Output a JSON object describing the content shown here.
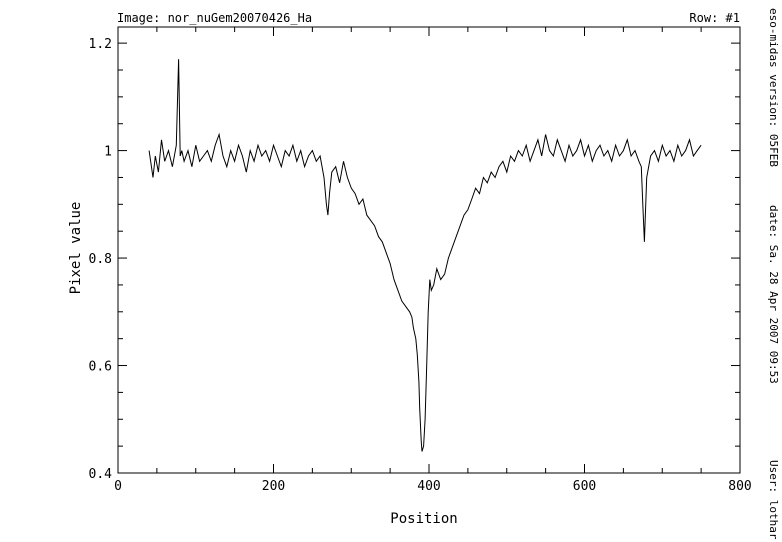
{
  "header": {
    "image_label": "Image:  nor_nuGem20070426_Ha",
    "row_label": "Row:  #1"
  },
  "side_info": {
    "version": "eso-midas version: 05FEB",
    "date": "date: Sa. 28 Apr 2007 09:53",
    "user": "User: lothar"
  },
  "chart_data": {
    "type": "line",
    "title": "",
    "xlabel": "Position",
    "ylabel": "Pixel value",
    "xlim": [
      0,
      800
    ],
    "ylim": [
      0.4,
      1.23
    ],
    "x_ticks": [
      0,
      200,
      400,
      600,
      800
    ],
    "y_ticks": [
      0.4,
      0.6,
      0.8,
      1.0,
      1.2
    ],
    "x_tick_labels": [
      "0",
      "200",
      "400",
      "600",
      "800"
    ],
    "y_tick_labels": [
      "0.4",
      "0.6",
      "0.8",
      "1",
      "1.2"
    ],
    "grid": false,
    "line_color": "#000000",
    "series": [
      {
        "x": [
          40,
          45,
          48,
          52,
          56,
          60,
          65,
          70,
          75,
          78,
          80,
          82,
          85,
          90,
          95,
          100,
          105,
          110,
          115,
          120,
          125,
          130,
          135,
          140,
          145,
          150,
          155,
          160,
          165,
          170,
          175,
          180,
          185,
          190,
          195,
          200,
          205,
          210,
          215,
          220,
          225,
          230,
          235,
          240,
          245,
          250,
          255,
          260,
          265,
          268,
          270,
          272,
          275,
          280,
          285,
          290,
          295,
          300,
          305,
          310,
          315,
          320,
          325,
          330,
          335,
          340,
          345,
          350,
          355,
          360,
          365,
          370,
          375,
          378,
          380,
          383,
          385,
          387,
          388,
          390,
          391,
          393,
          395,
          397,
          399,
          401,
          403,
          406,
          410,
          415,
          420,
          425,
          430,
          435,
          440,
          445,
          450,
          455,
          460,
          465,
          470,
          475,
          480,
          485,
          490,
          495,
          500,
          505,
          510,
          515,
          520,
          525,
          530,
          535,
          540,
          545,
          550,
          555,
          560,
          565,
          570,
          575,
          580,
          585,
          590,
          595,
          600,
          605,
          610,
          615,
          620,
          625,
          630,
          635,
          640,
          645,
          650,
          655,
          660,
          665,
          670,
          673,
          675,
          677,
          680,
          685,
          690,
          695,
          700,
          705,
          710,
          715,
          720,
          725,
          730,
          735,
          740,
          745,
          750
        ],
        "y": [
          1.0,
          0.95,
          0.99,
          0.96,
          1.02,
          0.98,
          1.0,
          0.97,
          1.01,
          1.17,
          0.99,
          1.0,
          0.98,
          1.0,
          0.97,
          1.01,
          0.98,
          0.99,
          1.0,
          0.98,
          1.01,
          1.03,
          0.99,
          0.97,
          1.0,
          0.98,
          1.01,
          0.99,
          0.96,
          1.0,
          0.98,
          1.01,
          0.99,
          1.0,
          0.98,
          1.01,
          0.99,
          0.97,
          1.0,
          0.99,
          1.01,
          0.98,
          1.0,
          0.97,
          0.99,
          1.0,
          0.98,
          0.99,
          0.95,
          0.9,
          0.88,
          0.92,
          0.96,
          0.97,
          0.94,
          0.98,
          0.95,
          0.93,
          0.92,
          0.9,
          0.91,
          0.88,
          0.87,
          0.86,
          0.84,
          0.83,
          0.81,
          0.79,
          0.76,
          0.74,
          0.72,
          0.71,
          0.7,
          0.69,
          0.67,
          0.65,
          0.62,
          0.57,
          0.52,
          0.46,
          0.44,
          0.45,
          0.5,
          0.6,
          0.7,
          0.76,
          0.74,
          0.75,
          0.78,
          0.76,
          0.77,
          0.8,
          0.82,
          0.84,
          0.86,
          0.88,
          0.89,
          0.91,
          0.93,
          0.92,
          0.95,
          0.94,
          0.96,
          0.95,
          0.97,
          0.98,
          0.96,
          0.99,
          0.98,
          1.0,
          0.99,
          1.01,
          0.98,
          1.0,
          1.02,
          0.99,
          1.03,
          1.0,
          0.99,
          1.02,
          1.0,
          0.98,
          1.01,
          0.99,
          1.0,
          1.02,
          0.99,
          1.01,
          0.98,
          1.0,
          1.01,
          0.99,
          1.0,
          0.98,
          1.01,
          0.99,
          1.0,
          1.02,
          0.99,
          1.0,
          0.98,
          0.97,
          0.9,
          0.83,
          0.95,
          0.99,
          1.0,
          0.98,
          1.01,
          0.99,
          1.0,
          0.98,
          1.01,
          0.99,
          1.0,
          1.02,
          0.99,
          1.0,
          1.01
        ]
      }
    ]
  }
}
